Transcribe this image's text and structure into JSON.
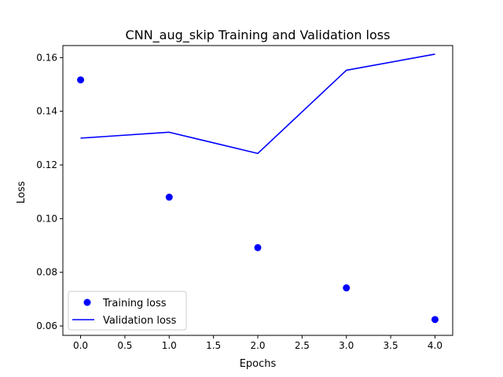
{
  "chart_data": {
    "type": "line",
    "title": "CNN_aug_skip Training and Validation loss",
    "xlabel": "Epochs",
    "ylabel": "Loss",
    "xlim": [
      -0.2,
      4.2
    ],
    "ylim": [
      0.0565,
      0.1645
    ],
    "x_ticks": [
      0.0,
      0.5,
      1.0,
      1.5,
      2.0,
      2.5,
      3.0,
      3.5,
      4.0
    ],
    "x_tick_labels": [
      "0.0",
      "0.5",
      "1.0",
      "1.5",
      "2.0",
      "2.5",
      "3.0",
      "3.5",
      "4.0"
    ],
    "y_ticks": [
      0.06,
      0.08,
      0.1,
      0.12,
      0.14,
      0.16
    ],
    "y_tick_labels": [
      "0.06",
      "0.08",
      "0.10",
      "0.12",
      "0.14",
      "0.16"
    ],
    "grid": false,
    "legend_position": "lower-left",
    "series": [
      {
        "name": "Training loss",
        "style": "markers",
        "color": "#0000ff",
        "x": [
          0,
          1,
          2,
          3,
          4
        ],
        "values": [
          0.1517,
          0.108,
          0.0892,
          0.0742,
          0.0624
        ]
      },
      {
        "name": "Validation loss",
        "style": "line",
        "color": "#0000ff",
        "x": [
          0,
          1,
          2,
          3,
          4
        ],
        "values": [
          0.13,
          0.1322,
          0.1243,
          0.1553,
          0.1613
        ]
      }
    ]
  }
}
